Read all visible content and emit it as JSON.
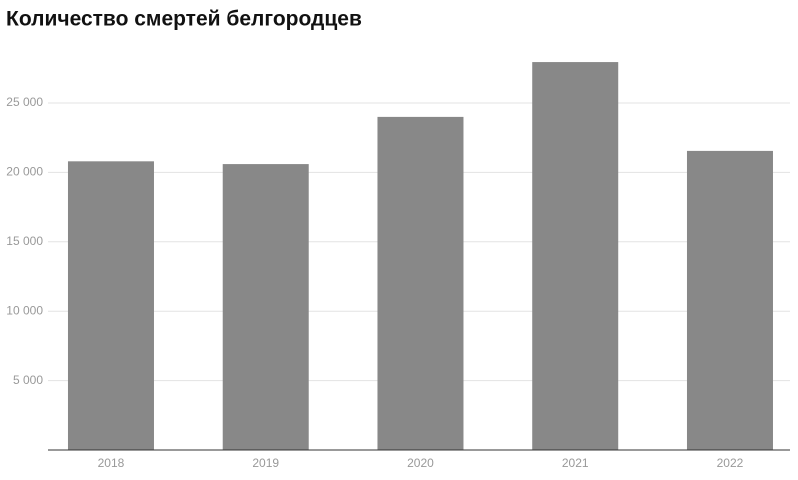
{
  "chart_data": {
    "type": "bar",
    "title": "Количество смертей белгородцев",
    "categories": [
      "2018",
      "2019",
      "2020",
      "2021",
      "2022"
    ],
    "values": [
      20800,
      20600,
      24000,
      27950,
      21550
    ],
    "color": "#888888",
    "ylim": [
      0,
      29000
    ],
    "yticks": [
      {
        "value": 5000,
        "label": "5 000"
      },
      {
        "value": 10000,
        "label": "10 000"
      },
      {
        "value": 15000,
        "label": "15 000"
      },
      {
        "value": 20000,
        "label": "20 000"
      },
      {
        "value": 25000,
        "label": "25 000"
      }
    ],
    "grid": true
  }
}
